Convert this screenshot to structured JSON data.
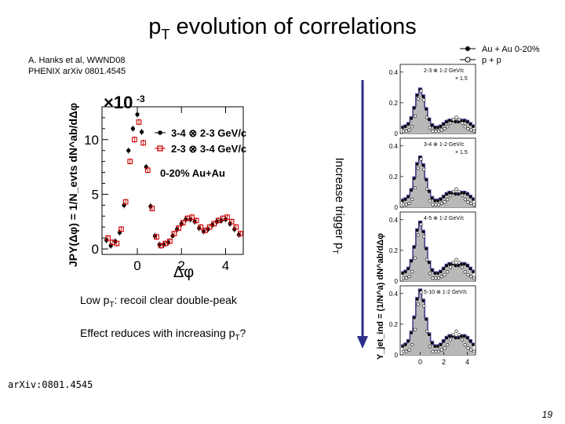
{
  "slide": {
    "title_main": "p",
    "title_sub": "T",
    "title_rest": " evolution of correlations",
    "reference_line1": "A.    Hanks et al, WWND08",
    "reference_line2": "PHENIX arXiv 0801.4545",
    "note1_pre": "Low p",
    "note1_sub": "T",
    "note1_post": ": recoil clear double-peak",
    "note2_pre": "Effect reduces with increasing p",
    "note2_sub": "T",
    "note2_post": "?",
    "arxiv_footer": "arXiv:0801.4545",
    "page_number": "19",
    "arrow_label": "Increase trigger p",
    "arrow_label_sub": "T"
  },
  "colors": {
    "black_series": "#000000",
    "red_series": "#cc0000",
    "purple_line": "#4b3a8c",
    "gray_fill": "#b8b8b8",
    "arrow": "#2b2f8a"
  },
  "chart_data": [
    {
      "type": "scatter",
      "title": "",
      "xlabel": "Δφ",
      "ylabel": "JPY(Δφ) = 1/N_evts dN^ab/dΔφ",
      "y_multiplier": "×10^-3",
      "x_ticks": [
        "0",
        "2",
        "4"
      ],
      "y_ticks": [
        "0",
        "5",
        "10"
      ],
      "xlim": [
        -1.6,
        4.8
      ],
      "ylim": [
        -0.5,
        13
      ],
      "legend": [
        "3-4 ⊗ 2-3 GeV/c",
        "2-3 ⊗ 3-4 GeV/c",
        "0-20% Au+Au"
      ],
      "series": [
        {
          "name": "3-4 ⊗ 2-3 GeV/c",
          "marker": "filled-circle",
          "x": [
            -1.4,
            -1.2,
            -1.0,
            -0.8,
            -0.6,
            -0.4,
            -0.2,
            0.0,
            0.2,
            0.4,
            0.6,
            0.8,
            1.0,
            1.2,
            1.4,
            1.6,
            1.8,
            2.0,
            2.2,
            2.4,
            2.6,
            2.8,
            3.0,
            3.2,
            3.4,
            3.6,
            3.8,
            4.0,
            4.2,
            4.4,
            4.6
          ],
          "y": [
            0.8,
            0.3,
            0.7,
            1.5,
            4.0,
            9.0,
            11.0,
            12.3,
            10.7,
            7.5,
            3.9,
            1.2,
            0.4,
            0.4,
            0.6,
            1.2,
            1.8,
            2.3,
            2.7,
            2.7,
            2.5,
            1.9,
            1.6,
            1.8,
            2.2,
            2.5,
            2.6,
            2.7,
            2.3,
            1.8,
            1.3
          ]
        },
        {
          "name": "2-3 ⊗ 3-4 GeV/c",
          "marker": "open-square",
          "x": [
            -1.4,
            -1.2,
            -1.0,
            -0.8,
            -0.6,
            -0.4,
            -0.2,
            0.0,
            0.2,
            0.4,
            0.6,
            0.8,
            1.0,
            1.2,
            1.4,
            1.6,
            1.8,
            2.0,
            2.2,
            2.4,
            2.6,
            2.8,
            3.0,
            3.2,
            3.4,
            3.6,
            3.8,
            4.0,
            4.2,
            4.4,
            4.6
          ],
          "y": [
            1.0,
            0.6,
            0.5,
            1.8,
            4.3,
            8.0,
            10.0,
            11.6,
            9.7,
            7.2,
            3.7,
            1.1,
            0.3,
            0.5,
            0.7,
            1.4,
            1.9,
            2.4,
            2.8,
            2.9,
            2.6,
            2.0,
            1.7,
            2.0,
            2.3,
            2.6,
            2.8,
            2.9,
            2.5,
            2.0,
            1.4
          ]
        }
      ]
    },
    {
      "type": "line",
      "panels": [
        {
          "label": "2-3 ⊗ 1-2 GeV/c",
          "scale": "× 1.5"
        },
        {
          "label": "3-4 ⊗ 1-2 GeV/c",
          "scale": "× 1.5"
        },
        {
          "label": "4-5 ⊗ 1-2 GeV/c",
          "scale": ""
        },
        {
          "label": "5-10 ⊗ 1-2 GeV/c",
          "scale": ""
        }
      ],
      "legend": [
        "Au + Au 0-20%",
        "p + p"
      ],
      "ylabel": "Y_jet_ind = (1/N^a) dN^ab/dΔφ",
      "y_ticks": [
        "0",
        "0.2",
        "0.4"
      ],
      "x_ticks": [
        "0",
        "2",
        "4"
      ],
      "ylim": [
        0,
        0.45
      ],
      "x": [
        -1.5,
        -1.25,
        -1.0,
        -0.75,
        -0.5,
        -0.25,
        0.0,
        0.25,
        0.5,
        0.75,
        1.0,
        1.25,
        1.5,
        1.75,
        2.0,
        2.25,
        2.5,
        2.75,
        3.0,
        3.25,
        3.5,
        3.75,
        4.0,
        4.25,
        4.5
      ],
      "series": [
        {
          "name": "Au + Au 0-20%",
          "values": [
            0.05,
            0.06,
            0.08,
            0.13,
            0.22,
            0.33,
            0.38,
            0.32,
            0.21,
            0.12,
            0.07,
            0.05,
            0.05,
            0.06,
            0.08,
            0.1,
            0.11,
            0.11,
            0.1,
            0.1,
            0.11,
            0.11,
            0.1,
            0.08,
            0.06
          ]
        },
        {
          "name": "p + p",
          "values": [
            0.02,
            0.02,
            0.03,
            0.06,
            0.15,
            0.3,
            0.37,
            0.29,
            0.14,
            0.05,
            0.02,
            0.02,
            0.02,
            0.03,
            0.04,
            0.06,
            0.09,
            0.12,
            0.14,
            0.12,
            0.09,
            0.06,
            0.04,
            0.03,
            0.02
          ]
        }
      ]
    }
  ]
}
